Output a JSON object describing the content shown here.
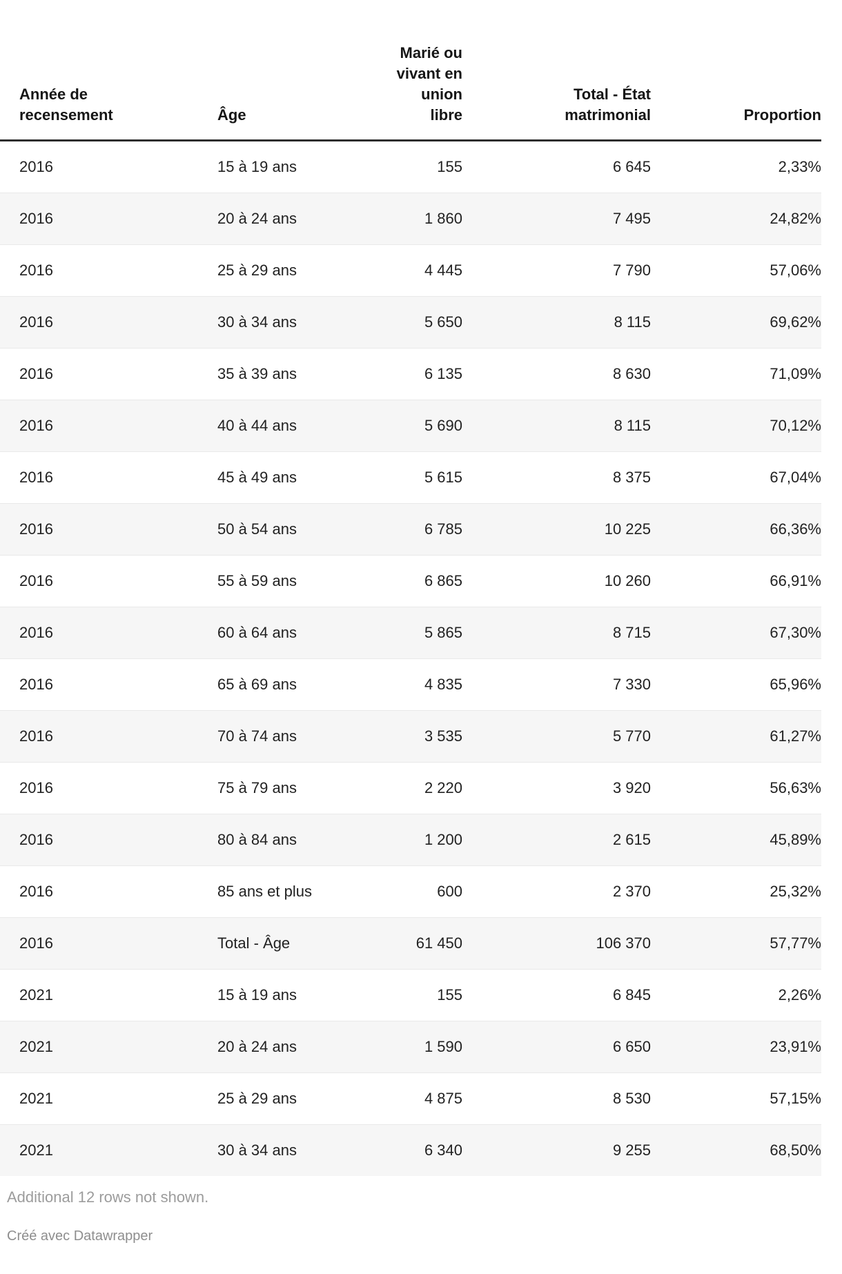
{
  "chart_data": {
    "type": "table",
    "columns": [
      "Année de recensement",
      "Âge",
      "Marié ou vivant en union libre",
      "Total - État matrimonial",
      "Proportion"
    ],
    "column_display": [
      "Année de\nrecensement",
      "Âge",
      "Marié ou\nvivant en\nunion\nlibre",
      "Total - État\nmatrimonial",
      "Proportion"
    ],
    "column_align": [
      "left",
      "left",
      "right",
      "right",
      "right"
    ],
    "rows": [
      [
        "2016",
        "15 à 19 ans",
        "155",
        "6 645",
        "2,33%"
      ],
      [
        "2016",
        "20 à 24 ans",
        "1 860",
        "7 495",
        "24,82%"
      ],
      [
        "2016",
        "25 à 29 ans",
        "4 445",
        "7 790",
        "57,06%"
      ],
      [
        "2016",
        "30 à 34 ans",
        "5 650",
        "8 115",
        "69,62%"
      ],
      [
        "2016",
        "35 à 39 ans",
        "6 135",
        "8 630",
        "71,09%"
      ],
      [
        "2016",
        "40 à 44 ans",
        "5 690",
        "8 115",
        "70,12%"
      ],
      [
        "2016",
        "45 à 49 ans",
        "5 615",
        "8 375",
        "67,04%"
      ],
      [
        "2016",
        "50 à 54 ans",
        "6 785",
        "10 225",
        "66,36%"
      ],
      [
        "2016",
        "55 à 59 ans",
        "6 865",
        "10 260",
        "66,91%"
      ],
      [
        "2016",
        "60 à 64 ans",
        "5 865",
        "8 715",
        "67,30%"
      ],
      [
        "2016",
        "65 à 69 ans",
        "4 835",
        "7 330",
        "65,96%"
      ],
      [
        "2016",
        "70 à 74 ans",
        "3 535",
        "5 770",
        "61,27%"
      ],
      [
        "2016",
        "75 à 79 ans",
        "2 220",
        "3 920",
        "56,63%"
      ],
      [
        "2016",
        "80 à 84 ans",
        "1 200",
        "2 615",
        "45,89%"
      ],
      [
        "2016",
        "85 ans et plus",
        "600",
        "2 370",
        "25,32%"
      ],
      [
        "2016",
        "Total - Âge",
        "61 450",
        "106 370",
        "57,77%"
      ],
      [
        "2021",
        "15 à 19 ans",
        "155",
        "6 845",
        "2,26%"
      ],
      [
        "2021",
        "20 à 24 ans",
        "1 590",
        "6 650",
        "23,91%"
      ],
      [
        "2021",
        "25 à 29 ans",
        "4 875",
        "8 530",
        "57,15%"
      ],
      [
        "2021",
        "30 à 34 ans",
        "6 340",
        "9 255",
        "68,50%"
      ]
    ]
  },
  "footer": {
    "note": "Additional 12 rows not shown.",
    "attribution": "Créé avec Datawrapper"
  },
  "colors": {
    "row_stripe": "#f6f6f6",
    "row_border": "#e9e9e9",
    "header_rule": "#2d2d2d",
    "header_text": "#161616",
    "body_text": "#222222",
    "note_text": "#9c9c9c",
    "attribution_text": "#8e8e8e"
  }
}
